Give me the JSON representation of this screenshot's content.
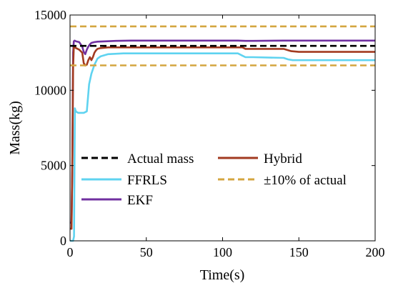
{
  "chart_data": {
    "type": "line",
    "title": "",
    "xlabel": "Time(s)",
    "ylabel": "Mass(kg)",
    "xlim": [
      0,
      200
    ],
    "ylim": [
      0,
      15000
    ],
    "xticks": [
      0,
      50,
      100,
      150,
      200
    ],
    "xtick_labels": [
      "0",
      "50",
      "100",
      "150",
      "200"
    ],
    "yticks": [
      0,
      5000,
      10000,
      15000
    ],
    "ytick_labels": [
      "0",
      "5000",
      "10000",
      "15000"
    ],
    "grid": false,
    "legend_position": "bottom-center",
    "series": [
      {
        "name": "Actual mass",
        "color": "#000000",
        "style": "dashed",
        "x": [
          0,
          200
        ],
        "y": [
          12950,
          12950
        ]
      },
      {
        "name": "FFRLS",
        "color": "#5fd3f0",
        "style": "solid",
        "x": [
          0,
          1,
          2,
          2.6,
          3.2,
          3.8,
          4.5,
          5.5,
          7,
          9,
          11,
          12.5,
          14,
          16,
          18,
          20,
          25,
          35,
          50,
          80,
          110,
          113,
          115,
          120,
          140,
          143,
          146,
          150,
          170,
          200
        ],
        "y": [
          0,
          0,
          0,
          300,
          8800,
          8600,
          8550,
          8500,
          8500,
          8500,
          8600,
          10400,
          11100,
          11700,
          12100,
          12250,
          12400,
          12450,
          12450,
          12450,
          12450,
          12300,
          12200,
          12200,
          12150,
          12050,
          12000,
          12000,
          12000,
          12000
        ]
      },
      {
        "name": "EKF",
        "color": "#7030a0",
        "style": "solid",
        "x": [
          0,
          1,
          1.5,
          2,
          2.5,
          3,
          4,
          6,
          8,
          9,
          10,
          11,
          12,
          13,
          14,
          16,
          18,
          22,
          30,
          40,
          60,
          80,
          100,
          110,
          115,
          120,
          140,
          160,
          180,
          200
        ],
        "y": [
          1200,
          1200,
          5000,
          12500,
          13250,
          13300,
          13250,
          13200,
          12900,
          12550,
          12400,
          12700,
          12900,
          13050,
          13150,
          13200,
          13230,
          13250,
          13280,
          13300,
          13300,
          13300,
          13300,
          13300,
          13280,
          13280,
          13300,
          13300,
          13300,
          13300
        ]
      },
      {
        "name": "Hybrid",
        "color": "#a23a20",
        "style": "solid",
        "x": [
          0,
          1,
          1.5,
          2,
          2.5,
          3,
          4,
          6,
          8,
          9,
          10,
          11,
          12,
          13,
          14,
          15,
          16,
          17,
          18,
          20,
          25,
          40,
          70,
          100,
          113,
          115,
          120,
          140,
          145,
          150,
          200
        ],
        "y": [
          800,
          800,
          5000,
          11500,
          12900,
          12850,
          12800,
          12700,
          12500,
          11800,
          11650,
          11700,
          12000,
          12200,
          12000,
          12200,
          12500,
          12650,
          12750,
          12800,
          12850,
          12850,
          12850,
          12850,
          12850,
          12750,
          12750,
          12750,
          12600,
          12550,
          12550
        ]
      },
      {
        "name": "±10% of actual",
        "color": "#d4a640",
        "style": "dashed",
        "x": [
          0,
          200
        ],
        "y": [
          14245,
          14245
        ]
      },
      {
        "name": "",
        "color": "#d4a640",
        "style": "dashed",
        "x": [
          0,
          200
        ],
        "y": [
          11655,
          11655
        ]
      }
    ]
  }
}
